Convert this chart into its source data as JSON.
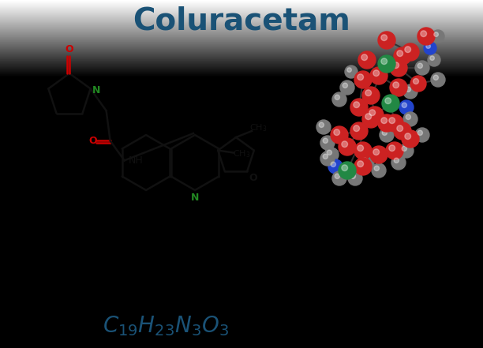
{
  "title": "Coluracetam",
  "title_color": "#1a5276",
  "title_fontsize": 28,
  "formula_color": "#1a5276",
  "formula_fontsize": 20,
  "background_top": "#d8d8d8",
  "background_bottom": "#ffffff",
  "atom_colors": {
    "C": "#cc2222",
    "H": "#888888",
    "N": "#2244cc",
    "O": "#cc2222",
    "green": "#228822"
  }
}
